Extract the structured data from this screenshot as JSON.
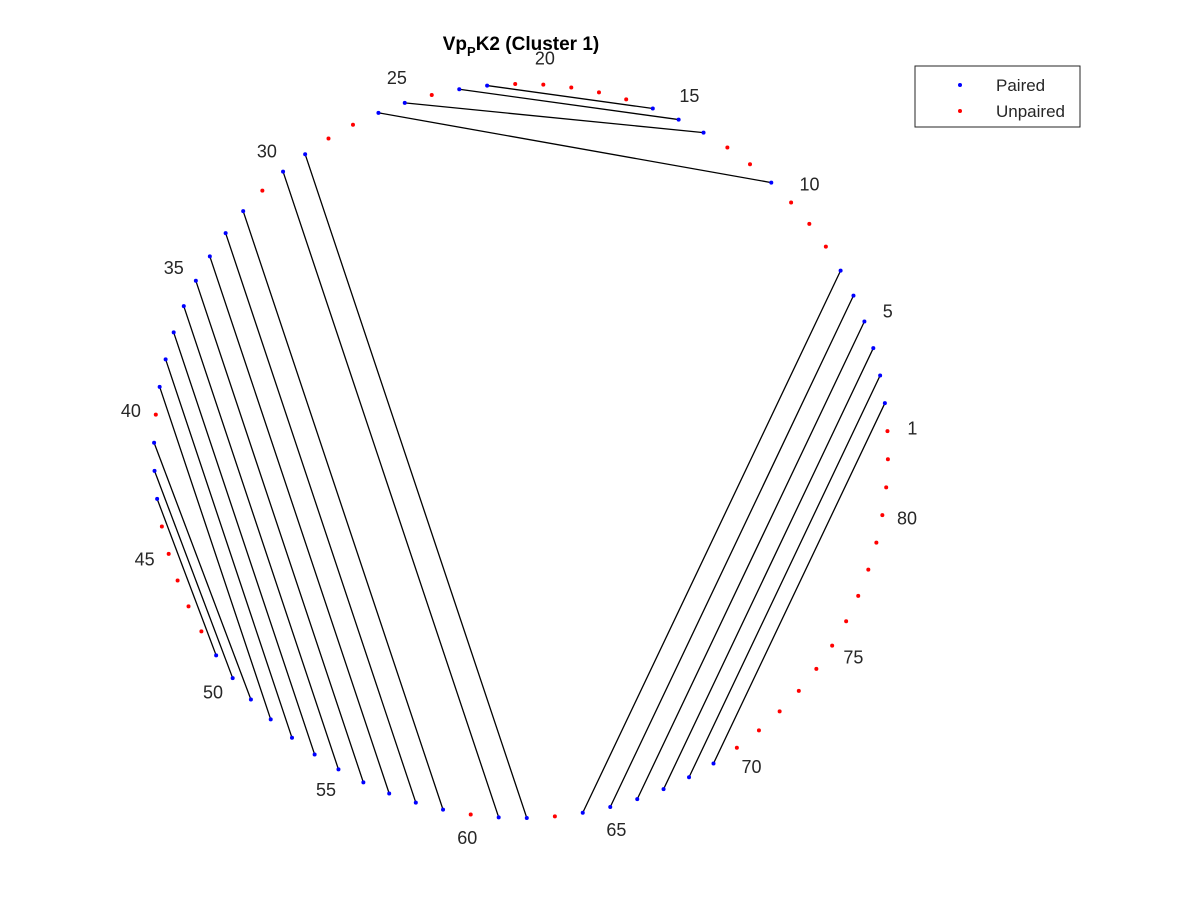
{
  "title": {
    "main": "Vp",
    "sub": "P",
    "rest": "K2 (Cluster 1)"
  },
  "legend": {
    "position": "top-right",
    "items": [
      {
        "label": "Paired",
        "color": "#0000ff"
      },
      {
        "label": "Unpaired",
        "color": "#ff0000"
      }
    ]
  },
  "colors": {
    "paired": "#0000ff",
    "unpaired": "#ff0000",
    "line": "#000000"
  },
  "chart_data": {
    "type": "arc-diagram",
    "total_positions": 82,
    "position_labels": [
      1,
      5,
      10,
      15,
      20,
      25,
      30,
      35,
      40,
      45,
      50,
      55,
      60,
      65,
      70,
      75,
      80
    ],
    "pairs": [
      [
        2,
        69
      ],
      [
        3,
        68
      ],
      [
        4,
        67
      ],
      [
        5,
        66
      ],
      [
        6,
        65
      ],
      [
        7,
        64
      ],
      [
        11,
        26
      ],
      [
        14,
        25
      ],
      [
        15,
        23
      ],
      [
        16,
        22
      ],
      [
        29,
        62
      ],
      [
        30,
        61
      ],
      [
        32,
        59
      ],
      [
        33,
        58
      ],
      [
        34,
        57
      ],
      [
        35,
        56
      ],
      [
        36,
        55
      ],
      [
        37,
        54
      ],
      [
        38,
        53
      ],
      [
        39,
        52
      ],
      [
        41,
        51
      ],
      [
        42,
        50
      ],
      [
        43,
        49
      ]
    ]
  }
}
